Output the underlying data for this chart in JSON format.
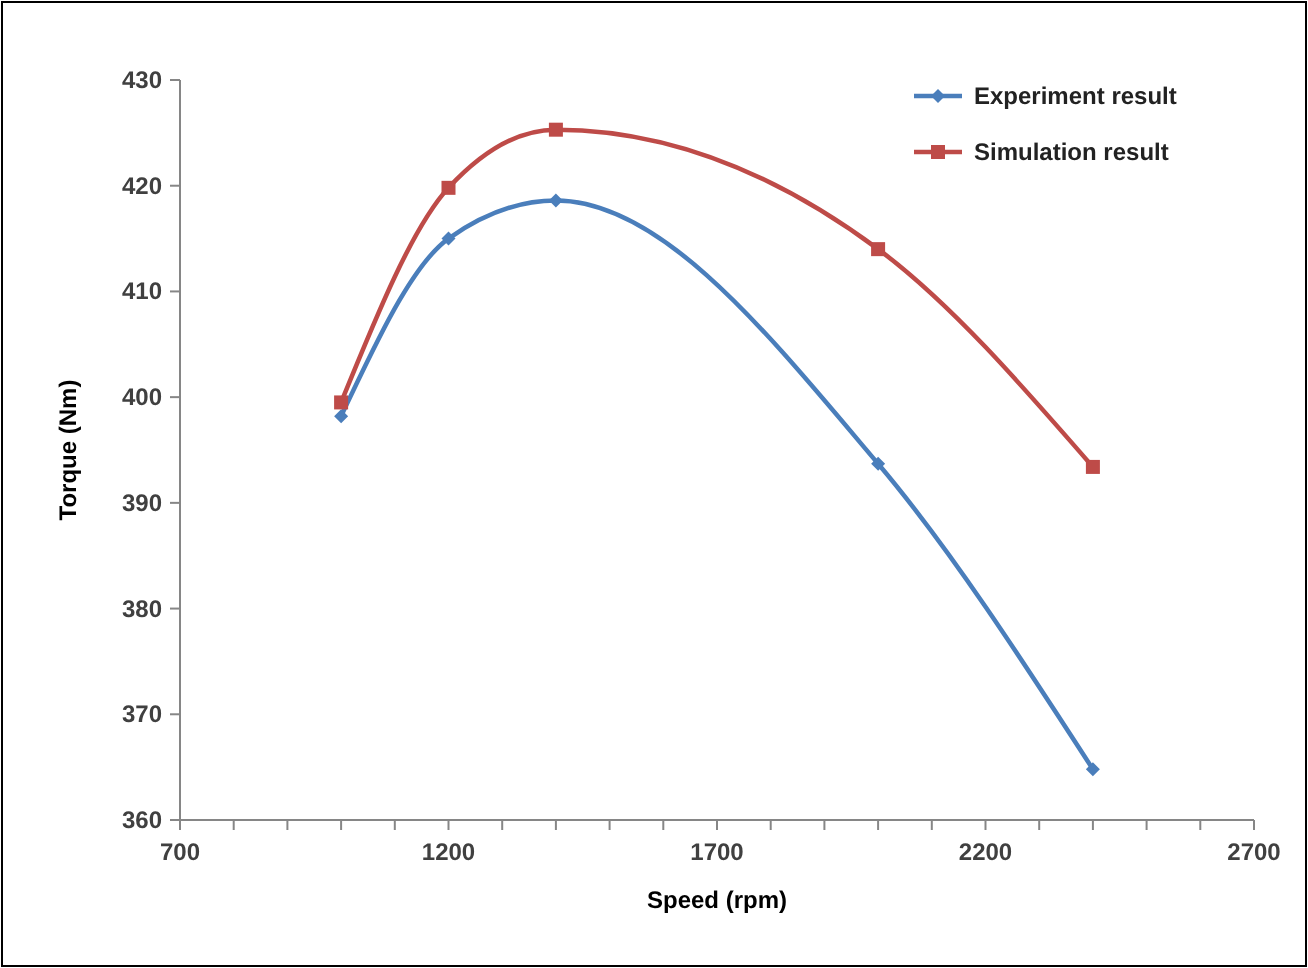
{
  "chart_data": {
    "type": "line",
    "xlabel": "Speed (rpm)",
    "ylabel": "Torque (Nm)",
    "x": [
      1000,
      1200,
      1400,
      2000,
      2400
    ],
    "series": [
      {
        "name": "Experiment result",
        "color": "#4a7ebb",
        "marker": "diamond",
        "values": [
          398.2,
          415,
          418.6,
          393.7,
          364.8
        ]
      },
      {
        "name": "Simulation result",
        "color": "#be4b48",
        "marker": "square",
        "values": [
          399.5,
          419.8,
          425.3,
          414,
          393.4
        ]
      }
    ],
    "xlim": [
      700,
      2700
    ],
    "xticks": [
      700,
      {
        "value": 800,
        "label": null
      },
      {
        "value": 900,
        "label": null
      },
      {
        "value": 1000,
        "label": null
      },
      {
        "value": 1100,
        "label": null
      },
      1200,
      {
        "value": 1300,
        "label": null
      },
      {
        "value": 1400,
        "label": null
      },
      {
        "value": 1500,
        "label": null
      },
      {
        "value": 1600,
        "label": null
      },
      1700,
      {
        "value": 1800,
        "label": null
      },
      {
        "value": 1900,
        "label": null
      },
      {
        "value": 2000,
        "label": null
      },
      {
        "value": 2100,
        "label": null
      },
      2200,
      {
        "value": 2300,
        "label": null
      },
      {
        "value": 2400,
        "label": null
      },
      {
        "value": 2500,
        "label": null
      },
      {
        "value": 2600,
        "label": null
      },
      2700
    ],
    "ylim": [
      360,
      430
    ],
    "yticks": [
      360,
      370,
      380,
      390,
      400,
      410,
      420,
      430
    ],
    "grid": false,
    "legend": "top right",
    "line_style": "solid"
  }
}
